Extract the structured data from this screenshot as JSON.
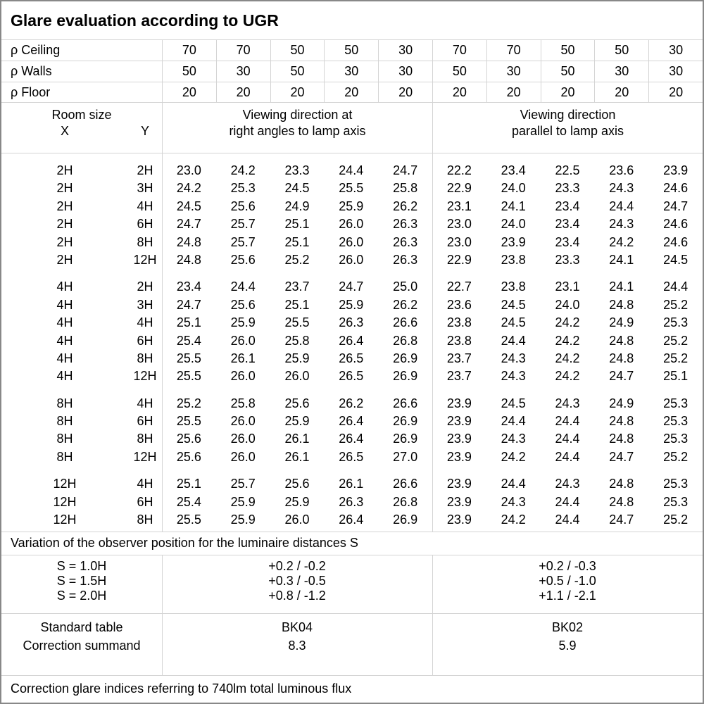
{
  "title": "Glare evaluation according to UGR",
  "reflectance": {
    "rows": [
      {
        "label": "ρ Ceiling",
        "values": [
          "70",
          "70",
          "50",
          "50",
          "30",
          "70",
          "70",
          "50",
          "50",
          "30"
        ]
      },
      {
        "label": "ρ Walls",
        "values": [
          "50",
          "30",
          "50",
          "30",
          "30",
          "50",
          "30",
          "50",
          "30",
          "30"
        ]
      },
      {
        "label": "ρ Floor",
        "values": [
          "20",
          "20",
          "20",
          "20",
          "20",
          "20",
          "20",
          "20",
          "20",
          "20"
        ]
      }
    ]
  },
  "header": {
    "room_size": "Room size",
    "x_label": "X",
    "y_label": "Y",
    "left_line1": "Viewing direction at",
    "left_line2": "right angles to lamp axis",
    "right_line1": "Viewing direction",
    "right_line2": "parallel to lamp axis"
  },
  "ugr_table": {
    "blocks": [
      {
        "rows": [
          {
            "x": "2H",
            "y": "2H",
            "right_angles": [
              "23.0",
              "24.2",
              "23.3",
              "24.4",
              "24.7"
            ],
            "parallel": [
              "22.2",
              "23.4",
              "22.5",
              "23.6",
              "23.9"
            ]
          },
          {
            "x": "2H",
            "y": "3H",
            "right_angles": [
              "24.2",
              "25.3",
              "24.5",
              "25.5",
              "25.8"
            ],
            "parallel": [
              "22.9",
              "24.0",
              "23.3",
              "24.3",
              "24.6"
            ]
          },
          {
            "x": "2H",
            "y": "4H",
            "right_angles": [
              "24.5",
              "25.6",
              "24.9",
              "25.9",
              "26.2"
            ],
            "parallel": [
              "23.1",
              "24.1",
              "23.4",
              "24.4",
              "24.7"
            ]
          },
          {
            "x": "2H",
            "y": "6H",
            "right_angles": [
              "24.7",
              "25.7",
              "25.1",
              "26.0",
              "26.3"
            ],
            "parallel": [
              "23.0",
              "24.0",
              "23.4",
              "24.3",
              "24.6"
            ]
          },
          {
            "x": "2H",
            "y": "8H",
            "right_angles": [
              "24.8",
              "25.7",
              "25.1",
              "26.0",
              "26.3"
            ],
            "parallel": [
              "23.0",
              "23.9",
              "23.4",
              "24.2",
              "24.6"
            ]
          },
          {
            "x": "2H",
            "y": "12H",
            "right_angles": [
              "24.8",
              "25.6",
              "25.2",
              "26.0",
              "26.3"
            ],
            "parallel": [
              "22.9",
              "23.8",
              "23.3",
              "24.1",
              "24.5"
            ]
          }
        ]
      },
      {
        "rows": [
          {
            "x": "4H",
            "y": "2H",
            "right_angles": [
              "23.4",
              "24.4",
              "23.7",
              "24.7",
              "25.0"
            ],
            "parallel": [
              "22.7",
              "23.8",
              "23.1",
              "24.1",
              "24.4"
            ]
          },
          {
            "x": "4H",
            "y": "3H",
            "right_angles": [
              "24.7",
              "25.6",
              "25.1",
              "25.9",
              "26.2"
            ],
            "parallel": [
              "23.6",
              "24.5",
              "24.0",
              "24.8",
              "25.2"
            ]
          },
          {
            "x": "4H",
            "y": "4H",
            "right_angles": [
              "25.1",
              "25.9",
              "25.5",
              "26.3",
              "26.6"
            ],
            "parallel": [
              "23.8",
              "24.5",
              "24.2",
              "24.9",
              "25.3"
            ]
          },
          {
            "x": "4H",
            "y": "6H",
            "right_angles": [
              "25.4",
              "26.0",
              "25.8",
              "26.4",
              "26.8"
            ],
            "parallel": [
              "23.8",
              "24.4",
              "24.2",
              "24.8",
              "25.2"
            ]
          },
          {
            "x": "4H",
            "y": "8H",
            "right_angles": [
              "25.5",
              "26.1",
              "25.9",
              "26.5",
              "26.9"
            ],
            "parallel": [
              "23.7",
              "24.3",
              "24.2",
              "24.8",
              "25.2"
            ]
          },
          {
            "x": "4H",
            "y": "12H",
            "right_angles": [
              "25.5",
              "26.0",
              "26.0",
              "26.5",
              "26.9"
            ],
            "parallel": [
              "23.7",
              "24.3",
              "24.2",
              "24.7",
              "25.1"
            ]
          }
        ]
      },
      {
        "rows": [
          {
            "x": "8H",
            "y": "4H",
            "right_angles": [
              "25.2",
              "25.8",
              "25.6",
              "26.2",
              "26.6"
            ],
            "parallel": [
              "23.9",
              "24.5",
              "24.3",
              "24.9",
              "25.3"
            ]
          },
          {
            "x": "8H",
            "y": "6H",
            "right_angles": [
              "25.5",
              "26.0",
              "25.9",
              "26.4",
              "26.9"
            ],
            "parallel": [
              "23.9",
              "24.4",
              "24.4",
              "24.8",
              "25.3"
            ]
          },
          {
            "x": "8H",
            "y": "8H",
            "right_angles": [
              "25.6",
              "26.0",
              "26.1",
              "26.4",
              "26.9"
            ],
            "parallel": [
              "23.9",
              "24.3",
              "24.4",
              "24.8",
              "25.3"
            ]
          },
          {
            "x": "8H",
            "y": "12H",
            "right_angles": [
              "25.6",
              "26.0",
              "26.1",
              "26.5",
              "27.0"
            ],
            "parallel": [
              "23.9",
              "24.2",
              "24.4",
              "24.7",
              "25.2"
            ]
          }
        ]
      },
      {
        "rows": [
          {
            "x": "12H",
            "y": "4H",
            "right_angles": [
              "25.1",
              "25.7",
              "25.6",
              "26.1",
              "26.6"
            ],
            "parallel": [
              "23.9",
              "24.4",
              "24.3",
              "24.8",
              "25.3"
            ]
          },
          {
            "x": "12H",
            "y": "6H",
            "right_angles": [
              "25.4",
              "25.9",
              "25.9",
              "26.3",
              "26.8"
            ],
            "parallel": [
              "23.9",
              "24.3",
              "24.4",
              "24.8",
              "25.3"
            ]
          },
          {
            "x": "12H",
            "y": "8H",
            "right_angles": [
              "25.5",
              "25.9",
              "26.0",
              "26.4",
              "26.9"
            ],
            "parallel": [
              "23.9",
              "24.2",
              "24.4",
              "24.7",
              "25.2"
            ]
          }
        ]
      }
    ]
  },
  "variation": {
    "title": "Variation of the observer position for the luminaire distances S",
    "rows": [
      {
        "label": "S = 1.0H",
        "left": "+0.2 / -0.2",
        "right": "+0.2 / -0.3"
      },
      {
        "label": "S = 1.5H",
        "left": "+0.3 / -0.5",
        "right": "+0.5 / -1.0"
      },
      {
        "label": "S = 2.0H",
        "left": "+0.8 / -1.2",
        "right": "+1.1 / -2.1"
      }
    ]
  },
  "summary": {
    "rows": [
      {
        "label": "Standard table",
        "left": "BK04",
        "right": "BK02"
      },
      {
        "label": "Correction summand",
        "left": "8.3",
        "right": "5.9"
      }
    ]
  },
  "footer": "Correction glare indices referring to 740lm total luminous flux",
  "colors": {
    "grid_line": "#d4d4d4",
    "outer_border": "#888888",
    "text": "#000000",
    "background": "#ffffff"
  }
}
